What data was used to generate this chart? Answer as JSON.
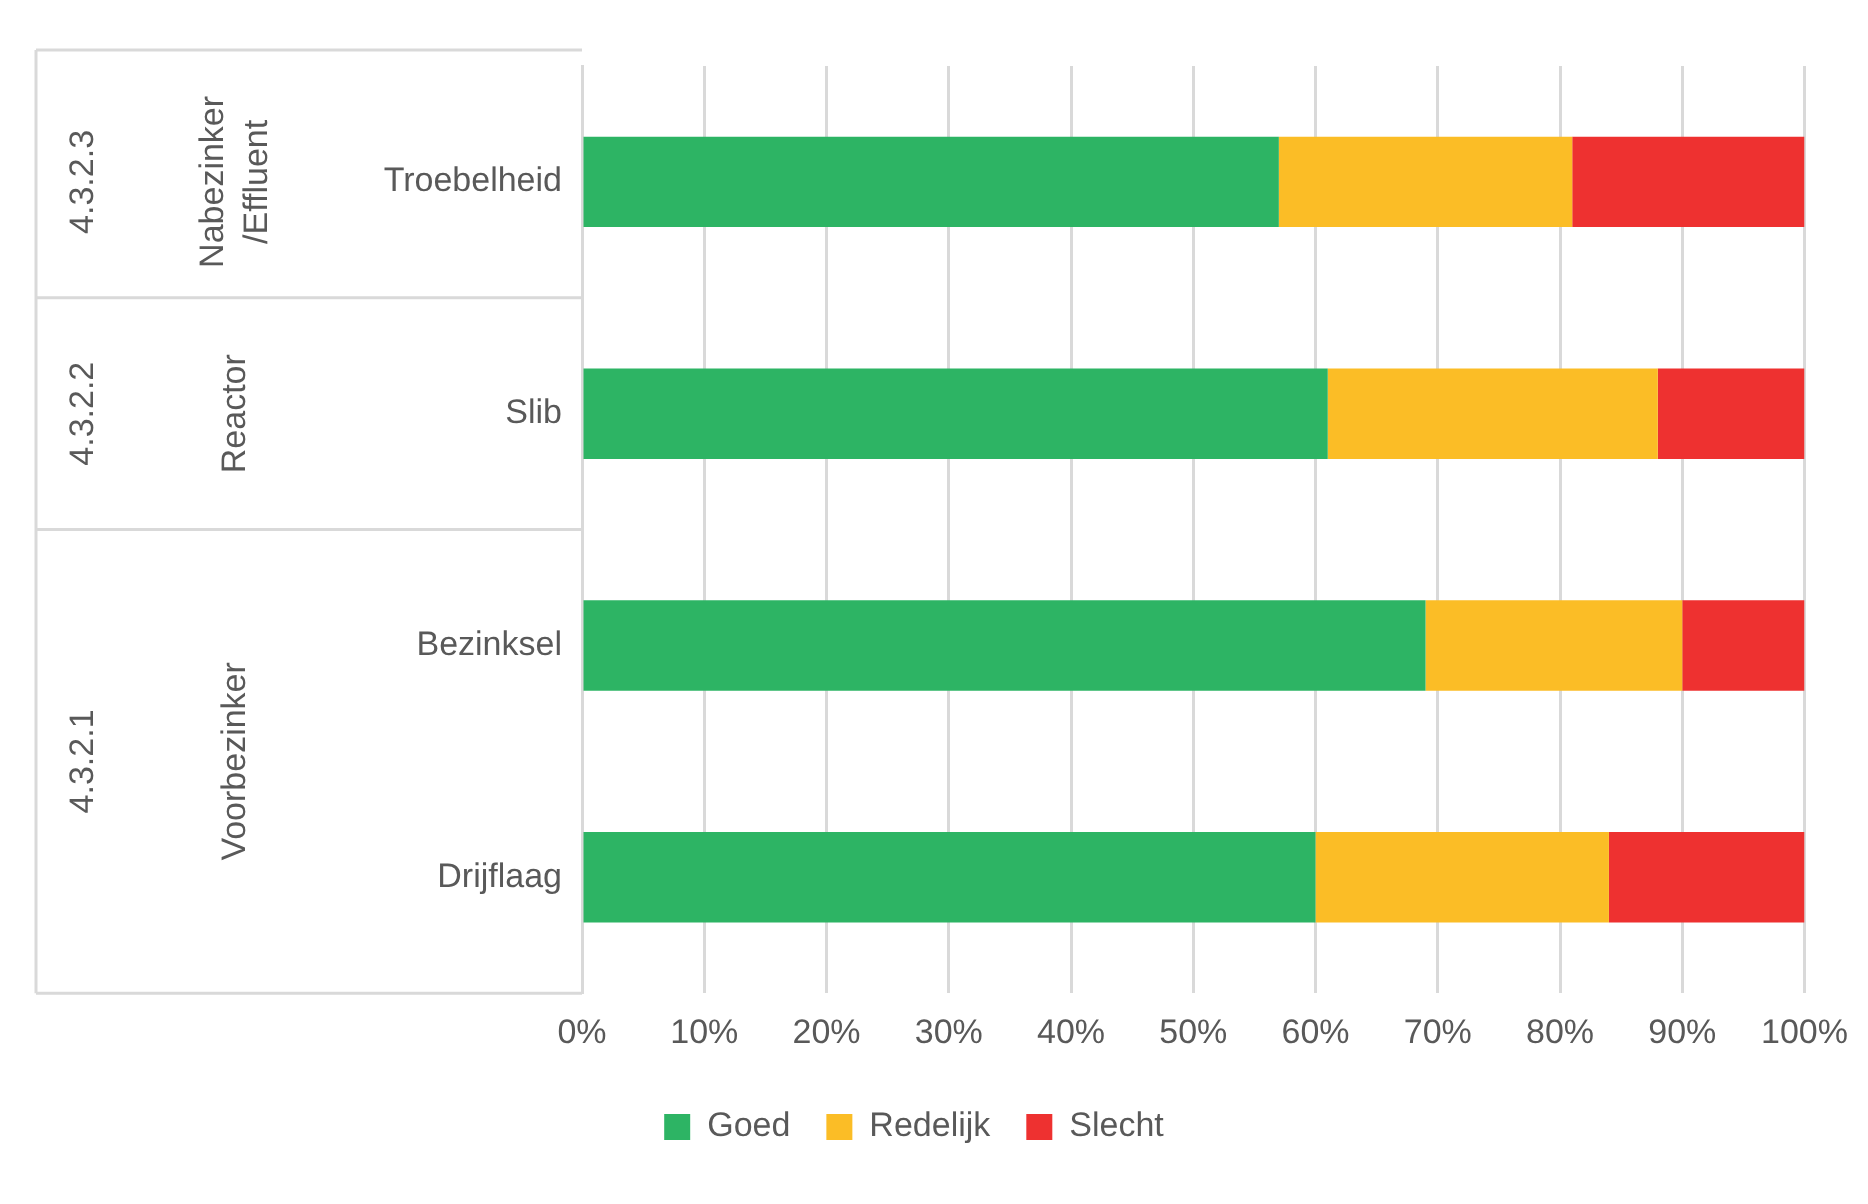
{
  "chart_data": {
    "type": "bar",
    "orientation": "horizontal",
    "stacked": true,
    "categories": [
      "Troebelheid",
      "Slib",
      "Bezinksel",
      "Drijflaag"
    ],
    "series": [
      {
        "name": "Goed",
        "color": "#2db464",
        "values": [
          57,
          61,
          69,
          60
        ]
      },
      {
        "name": "Redelijk",
        "color": "#fbbd26",
        "values": [
          24,
          27,
          21,
          24
        ]
      },
      {
        "name": "Slecht",
        "color": "#ee3130",
        "values": [
          19,
          12,
          10,
          16
        ]
      }
    ],
    "xlim": [
      0,
      100
    ],
    "xticks": [
      {
        "value": 0,
        "label": "0%"
      },
      {
        "value": 10,
        "label": "10%"
      },
      {
        "value": 20,
        "label": "20%"
      },
      {
        "value": 30,
        "label": "30%"
      },
      {
        "value": 40,
        "label": "40%"
      },
      {
        "value": 50,
        "label": "50%"
      },
      {
        "value": 60,
        "label": "60%"
      },
      {
        "value": 70,
        "label": "70%"
      },
      {
        "value": 80,
        "label": "80%"
      },
      {
        "value": 90,
        "label": "90%"
      },
      {
        "value": 100,
        "label": "100%"
      }
    ],
    "grid": "x",
    "legend": "bottom",
    "annotations": [
      "4.3.2.3",
      "Nabezinker /Effluent",
      "4.3.2.2",
      "Reactor",
      "4.3.2.1",
      "Voorbezinker"
    ]
  }
}
